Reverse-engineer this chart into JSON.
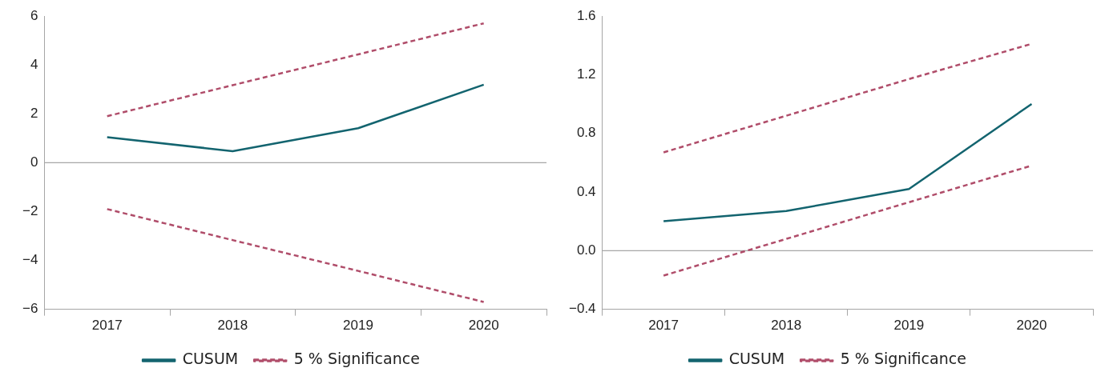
{
  "chart_data": [
    {
      "type": "line",
      "categories": [
        "2017",
        "2018",
        "2019",
        "2020"
      ],
      "ylim": [
        -6,
        6
      ],
      "yticks": [
        {
          "value": -6,
          "label": "−6"
        },
        {
          "value": -4,
          "label": "−4"
        },
        {
          "value": -2,
          "label": "−2"
        },
        0,
        2,
        4,
        6
      ],
      "grid": false,
      "legend": "bottom",
      "marker": "none",
      "ref_lines": [
        {
          "axis": "y",
          "value": 0,
          "color": "#a6a6a6"
        }
      ],
      "series": [
        {
          "name": "CUSUM",
          "color": "#13646f",
          "line_style": "solid",
          "values": [
            1.04,
            0.47,
            1.41,
            3.19
          ]
        },
        {
          "name": "5 % Significance",
          "color": "#b04d6a",
          "line_style": "dashed",
          "values": [
            1.9,
            3.17,
            4.43,
            5.7
          ]
        },
        {
          "color": "#b04d6a",
          "line_style": "dashed",
          "values": [
            -1.9,
            -3.17,
            -4.43,
            -5.7
          ]
        }
      ]
    },
    {
      "type": "line",
      "categories": [
        "2017",
        "2018",
        "2019",
        "2020"
      ],
      "ylim": [
        -0.4,
        1.6
      ],
      "yticks": [
        {
          "value": -0.4,
          "label": "−0.4"
        },
        {
          "value": 0,
          "label": "0.0"
        },
        0.4,
        0.8,
        1.2,
        1.6
      ],
      "grid": false,
      "legend": "bottom",
      "marker": "none",
      "ref_lines": [
        {
          "axis": "y",
          "value": 0,
          "color": "#a6a6a6"
        }
      ],
      "series": [
        {
          "name": "CUSUM",
          "color": "#13646f",
          "line_style": "solid",
          "values": [
            0.2,
            0.27,
            0.42,
            1.0
          ]
        },
        {
          "name": "5 % Significance",
          "color": "#b04d6a",
          "line_style": "dashed",
          "values": [
            0.67,
            0.92,
            1.17,
            1.41
          ]
        },
        {
          "color": "#b04d6a",
          "line_style": "dashed",
          "values": [
            -0.17,
            0.08,
            0.33,
            0.58
          ]
        }
      ]
    }
  ]
}
